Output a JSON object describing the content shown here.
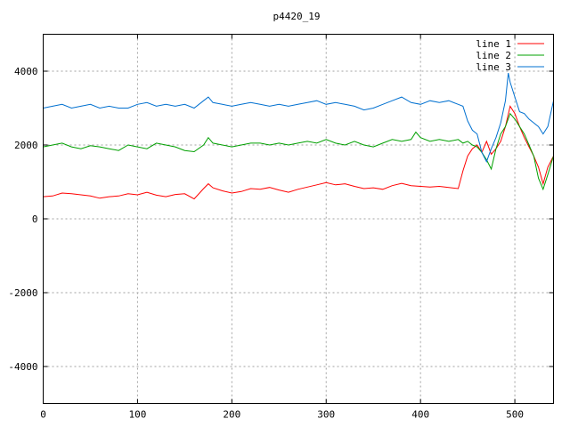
{
  "chart_data": {
    "type": "line",
    "title": "p4420_19",
    "xlabel": "",
    "ylabel": "",
    "xlim": [
      0,
      541
    ],
    "ylim": [
      -5000,
      5000
    ],
    "xticks": [
      0,
      100,
      200,
      300,
      400,
      500
    ],
    "yticks": [
      -4000,
      -2000,
      0,
      2000,
      4000
    ],
    "xtick_labels": [
      "0",
      "100",
      "200",
      "300",
      "400",
      "500"
    ],
    "ytick_labels": [
      "-4000",
      "-2000",
      "0",
      "2000",
      "4000"
    ],
    "grid": true,
    "legend_position": "top-right",
    "series": [
      {
        "name": "line 1",
        "color": "#ff0000",
        "points": [
          [
            0,
            600
          ],
          [
            10,
            620
          ],
          [
            20,
            700
          ],
          [
            30,
            680
          ],
          [
            40,
            650
          ],
          [
            50,
            620
          ],
          [
            60,
            560
          ],
          [
            70,
            600
          ],
          [
            80,
            620
          ],
          [
            90,
            680
          ],
          [
            100,
            650
          ],
          [
            110,
            720
          ],
          [
            120,
            640
          ],
          [
            130,
            600
          ],
          [
            140,
            660
          ],
          [
            150,
            680
          ],
          [
            160,
            540
          ],
          [
            170,
            820
          ],
          [
            175,
            950
          ],
          [
            180,
            840
          ],
          [
            190,
            760
          ],
          [
            200,
            700
          ],
          [
            210,
            740
          ],
          [
            220,
            820
          ],
          [
            230,
            800
          ],
          [
            240,
            850
          ],
          [
            250,
            780
          ],
          [
            260,
            720
          ],
          [
            270,
            800
          ],
          [
            280,
            860
          ],
          [
            290,
            920
          ],
          [
            300,
            980
          ],
          [
            310,
            920
          ],
          [
            320,
            950
          ],
          [
            330,
            880
          ],
          [
            340,
            820
          ],
          [
            350,
            840
          ],
          [
            360,
            800
          ],
          [
            370,
            900
          ],
          [
            380,
            960
          ],
          [
            390,
            900
          ],
          [
            400,
            880
          ],
          [
            410,
            860
          ],
          [
            420,
            880
          ],
          [
            430,
            850
          ],
          [
            440,
            820
          ],
          [
            445,
            1300
          ],
          [
            450,
            1700
          ],
          [
            455,
            1900
          ],
          [
            460,
            2000
          ],
          [
            465,
            1800
          ],
          [
            470,
            2100
          ],
          [
            475,
            1750
          ],
          [
            480,
            1900
          ],
          [
            485,
            2100
          ],
          [
            490,
            2500
          ],
          [
            495,
            3050
          ],
          [
            500,
            2850
          ],
          [
            505,
            2500
          ],
          [
            510,
            2200
          ],
          [
            515,
            1950
          ],
          [
            520,
            1700
          ],
          [
            525,
            1400
          ],
          [
            530,
            950
          ],
          [
            535,
            1400
          ],
          [
            541,
            1700
          ]
        ]
      },
      {
        "name": "line 2",
        "color": "#00a000",
        "points": [
          [
            0,
            1950
          ],
          [
            10,
            2000
          ],
          [
            20,
            2050
          ],
          [
            30,
            1950
          ],
          [
            40,
            1900
          ],
          [
            50,
            1980
          ],
          [
            60,
            1950
          ],
          [
            70,
            1900
          ],
          [
            80,
            1850
          ],
          [
            90,
            2000
          ],
          [
            100,
            1950
          ],
          [
            110,
            1900
          ],
          [
            120,
            2050
          ],
          [
            130,
            2000
          ],
          [
            140,
            1950
          ],
          [
            150,
            1850
          ],
          [
            160,
            1820
          ],
          [
            170,
            2000
          ],
          [
            175,
            2200
          ],
          [
            180,
            2050
          ],
          [
            190,
            2000
          ],
          [
            200,
            1950
          ],
          [
            210,
            2000
          ],
          [
            220,
            2050
          ],
          [
            230,
            2050
          ],
          [
            240,
            2000
          ],
          [
            250,
            2050
          ],
          [
            260,
            2000
          ],
          [
            270,
            2050
          ],
          [
            280,
            2100
          ],
          [
            290,
            2050
          ],
          [
            300,
            2150
          ],
          [
            310,
            2050
          ],
          [
            320,
            2000
          ],
          [
            330,
            2100
          ],
          [
            340,
            2000
          ],
          [
            350,
            1950
          ],
          [
            360,
            2050
          ],
          [
            370,
            2150
          ],
          [
            380,
            2100
          ],
          [
            390,
            2150
          ],
          [
            395,
            2350
          ],
          [
            400,
            2200
          ],
          [
            410,
            2100
          ],
          [
            420,
            2150
          ],
          [
            430,
            2100
          ],
          [
            440,
            2150
          ],
          [
            445,
            2050
          ],
          [
            450,
            2100
          ],
          [
            455,
            2000
          ],
          [
            460,
            1950
          ],
          [
            465,
            1800
          ],
          [
            470,
            1600
          ],
          [
            475,
            1350
          ],
          [
            480,
            1900
          ],
          [
            485,
            2300
          ],
          [
            490,
            2500
          ],
          [
            495,
            2850
          ],
          [
            500,
            2700
          ],
          [
            505,
            2500
          ],
          [
            510,
            2300
          ],
          [
            515,
            2000
          ],
          [
            520,
            1700
          ],
          [
            525,
            1100
          ],
          [
            530,
            800
          ],
          [
            535,
            1200
          ],
          [
            541,
            1700
          ]
        ]
      },
      {
        "name": "line 3",
        "color": "#0070d0",
        "points": [
          [
            0,
            3000
          ],
          [
            10,
            3050
          ],
          [
            20,
            3100
          ],
          [
            30,
            3000
          ],
          [
            40,
            3050
          ],
          [
            50,
            3100
          ],
          [
            60,
            3000
          ],
          [
            70,
            3050
          ],
          [
            80,
            3000
          ],
          [
            90,
            3000
          ],
          [
            100,
            3100
          ],
          [
            110,
            3150
          ],
          [
            120,
            3050
          ],
          [
            130,
            3100
          ],
          [
            140,
            3050
          ],
          [
            150,
            3100
          ],
          [
            160,
            3000
          ],
          [
            170,
            3200
          ],
          [
            175,
            3300
          ],
          [
            180,
            3150
          ],
          [
            190,
            3100
          ],
          [
            200,
            3050
          ],
          [
            210,
            3100
          ],
          [
            220,
            3150
          ],
          [
            230,
            3100
          ],
          [
            240,
            3050
          ],
          [
            250,
            3100
          ],
          [
            260,
            3050
          ],
          [
            270,
            3100
          ],
          [
            280,
            3150
          ],
          [
            290,
            3200
          ],
          [
            300,
            3100
          ],
          [
            310,
            3150
          ],
          [
            320,
            3100
          ],
          [
            330,
            3050
          ],
          [
            340,
            2950
          ],
          [
            350,
            3000
          ],
          [
            360,
            3100
          ],
          [
            370,
            3200
          ],
          [
            380,
            3300
          ],
          [
            390,
            3150
          ],
          [
            400,
            3100
          ],
          [
            410,
            3200
          ],
          [
            420,
            3150
          ],
          [
            430,
            3200
          ],
          [
            440,
            3100
          ],
          [
            445,
            3050
          ],
          [
            450,
            2650
          ],
          [
            455,
            2400
          ],
          [
            460,
            2300
          ],
          [
            465,
            1800
          ],
          [
            470,
            1550
          ],
          [
            475,
            1900
          ],
          [
            480,
            2200
          ],
          [
            485,
            2600
          ],
          [
            490,
            3200
          ],
          [
            493,
            3950
          ],
          [
            495,
            3700
          ],
          [
            500,
            3300
          ],
          [
            505,
            2900
          ],
          [
            510,
            2850
          ],
          [
            515,
            2700
          ],
          [
            520,
            2600
          ],
          [
            525,
            2500
          ],
          [
            530,
            2300
          ],
          [
            535,
            2500
          ],
          [
            541,
            3200
          ]
        ]
      }
    ]
  }
}
